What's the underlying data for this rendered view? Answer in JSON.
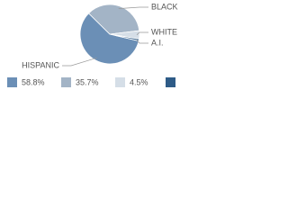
{
  "chart_data": {
    "type": "pie",
    "categories": [
      "HISPANIC",
      "BLACK",
      "WHITE",
      "A.I."
    ],
    "values": [
      58.8,
      35.7,
      4.5,
      1.0
    ],
    "value_labels": [
      "58.8%",
      "35.7%",
      "4.5%",
      null
    ],
    "colors": [
      "#6b8fb6",
      "#a3b4c6",
      "#d5dee7",
      "#2e5b87"
    ]
  }
}
